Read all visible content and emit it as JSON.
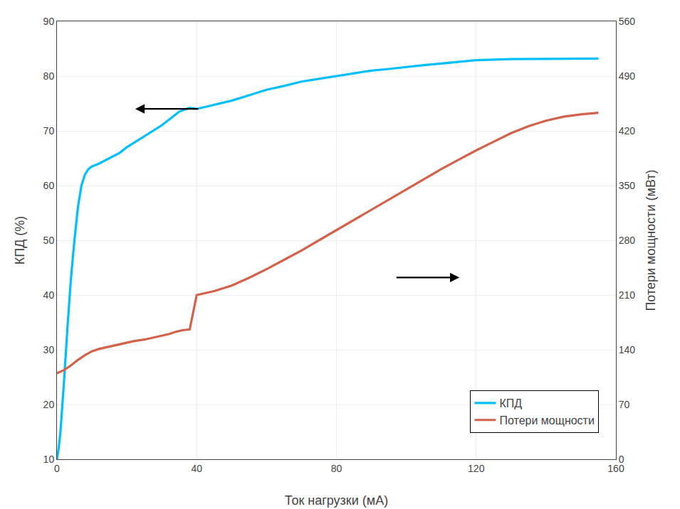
{
  "chart_data": {
    "type": "line",
    "xlabel": "Ток нагрузки (мА)",
    "ylabel": "КПД (%)",
    "y2label": "Потери мощности (мВт)",
    "xlim": [
      0,
      160
    ],
    "ylim": [
      10,
      90
    ],
    "y2lim": [
      0,
      560
    ],
    "xticks": [
      0,
      40,
      80,
      120,
      160
    ],
    "yticks": [
      10,
      20,
      30,
      40,
      50,
      60,
      70,
      80,
      90
    ],
    "y2ticks": [
      0,
      70,
      140,
      210,
      280,
      350,
      420,
      490,
      560
    ],
    "grid": true,
    "legend": "lower right",
    "series": [
      {
        "name": "КПД",
        "color": "#00BFFF",
        "x": [
          0,
          0.5,
          1,
          1.5,
          2,
          3,
          4,
          5,
          6,
          7,
          8,
          9,
          10,
          12,
          15,
          18,
          20,
          25,
          30,
          33,
          35,
          37,
          38,
          40,
          45,
          50,
          55,
          60,
          65,
          70,
          75,
          80,
          85,
          90,
          95,
          100,
          105,
          110,
          115,
          120,
          125,
          130,
          155
        ],
        "values": [
          10,
          12,
          15,
          19,
          24,
          34,
          43,
          50,
          56,
          60,
          62,
          63,
          63.5,
          64,
          65,
          66,
          67,
          69,
          71,
          72.5,
          73.5,
          74,
          74.2,
          74,
          74.8,
          75.5,
          76.5,
          77.5,
          78.2,
          79,
          79.5,
          80,
          80.5,
          81,
          81.3,
          81.7,
          82,
          82.3,
          82.6,
          82.9,
          83.0,
          83.1,
          83.2
        ]
      },
      {
        "name": "Потери мощности",
        "color": "#D4614A",
        "axis": "y2",
        "x": [
          0,
          2,
          4,
          6,
          8,
          10,
          12,
          15,
          18,
          20,
          22,
          25,
          28,
          30,
          32,
          34,
          36,
          38,
          40,
          45,
          50,
          55,
          60,
          65,
          70,
          75,
          80,
          85,
          90,
          95,
          100,
          105,
          110,
          115,
          120,
          125,
          130,
          135,
          140,
          145,
          150,
          155
        ],
        "values": [
          110,
          114,
          120,
          127,
          133,
          138,
          141,
          144,
          147,
          149,
          151,
          153,
          156,
          158,
          160,
          163,
          165,
          166,
          210,
          215,
          222,
          232,
          243,
          255,
          267,
          280,
          293,
          306,
          319,
          332,
          345,
          358,
          371,
          383,
          395,
          406,
          417,
          426,
          433,
          438,
          441,
          443
        ]
      }
    ]
  }
}
